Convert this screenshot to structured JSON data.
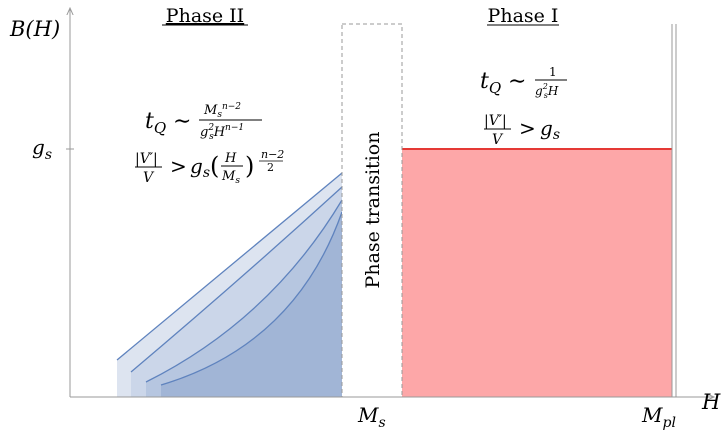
{
  "y_axis_label": "B(H)",
  "x_axis_label": "H",
  "y_tick_label": "g",
  "y_tick_sub": "s",
  "x_tick_ms": "M",
  "x_tick_ms_sub": "s",
  "x_tick_mpl": "M",
  "x_tick_mpl_sub": "pl",
  "phase_left_title": "Phase II",
  "phase_right_title": "Phase I",
  "transition_label": "Phase transition",
  "colors": {
    "axis": "#999999",
    "phase1_fill": "#fda7a8",
    "phase1_line": "#e53935",
    "blue_light": "#dde4f0",
    "blue_mid": "#c3d0e5",
    "blue_dark": "#a4b7d6",
    "blue_line": "#5f83be"
  }
}
